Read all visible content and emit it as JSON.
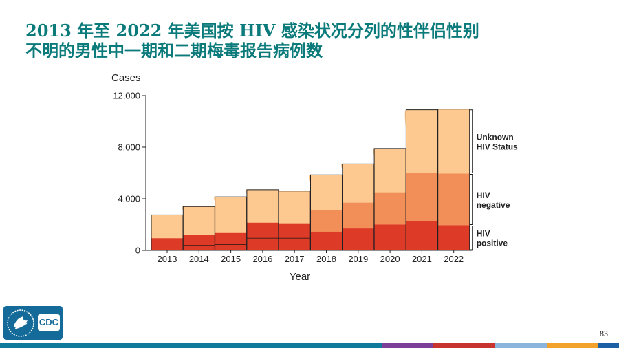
{
  "slide": {
    "title_line1": "2013 年至 2022 年美国按 HIV 感染状况分列的性伴侣性别",
    "title_line2": "不明的男性中一期和二期梅毒报告病例数",
    "page_number": "83",
    "logo_text": "CDC"
  },
  "colors": {
    "title": "#0b7a7a",
    "hiv_positive": "#de3a28",
    "hiv_negative": "#f28f58",
    "unknown": "#fdc991",
    "logo_bg": "#146b99",
    "bottom_bar": [
      "#0f7a99",
      "#0f7a99",
      "#7b3f98",
      "#c8332e",
      "#8ab4dc",
      "#f2a12b",
      "#1b5fa4"
    ]
  },
  "chart_data": {
    "type": "bar",
    "stacked": true,
    "ylabel": "Cases",
    "xlabel": "Year",
    "ylim": [
      0,
      12000
    ],
    "y_ticks": [
      0,
      4000,
      8000,
      12000
    ],
    "y_tick_labels": [
      "0",
      "4,000",
      "8,000",
      "12,000"
    ],
    "categories": [
      "2013",
      "2014",
      "2015",
      "2016",
      "2017",
      "2018",
      "2019",
      "2020",
      "2021",
      "2022"
    ],
    "series": [
      {
        "name": "HIV positive",
        "label_lines": [
          "HIV",
          "positive"
        ],
        "values": [
          950,
          1200,
          1350,
          2150,
          2100,
          1450,
          1700,
          2000,
          2300,
          1950
        ]
      },
      {
        "name": "HIV negative",
        "label_lines": [
          "HIV",
          "negative"
        ],
        "values": [
          0,
          0,
          0,
          0,
          0,
          1650,
          2000,
          2500,
          3700,
          4000
        ]
      },
      {
        "name": "Unknown HIV Status",
        "label_lines": [
          "Unknown",
          "HIV Status"
        ],
        "values": [
          1800,
          2200,
          2800,
          2550,
          2500,
          2750,
          3000,
          3400,
          4900,
          5000
        ]
      }
    ],
    "sub_boundary": [
      350,
      400,
      450,
      950,
      950,
      0,
      0,
      0,
      0,
      0
    ],
    "grid": false,
    "legend": "right"
  }
}
